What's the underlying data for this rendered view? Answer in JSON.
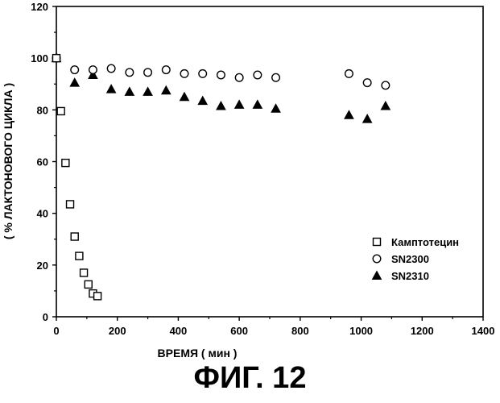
{
  "figure_caption": "ФИГ. 12",
  "chart_data": {
    "type": "scatter",
    "xlabel": "ВРЕМЯ ( мин )",
    "ylabel": "( % ЛАКТОНОВОГО ЦИКЛА )",
    "xlim": [
      0,
      1400
    ],
    "ylim": [
      0,
      120
    ],
    "xticks": [
      0,
      200,
      400,
      600,
      800,
      1000,
      1200,
      1400
    ],
    "yticks": [
      0,
      20,
      40,
      60,
      80,
      100,
      120
    ],
    "grid": false,
    "legend_position": "lower-right",
    "series": [
      {
        "name": "Камптотецин",
        "marker": "square-open",
        "x": [
          0,
          15,
          30,
          45,
          60,
          75,
          90,
          105,
          120,
          135
        ],
        "y": [
          100,
          79.5,
          59.5,
          43.5,
          31,
          23.5,
          17,
          12.5,
          9,
          8
        ]
      },
      {
        "name": "SN2300",
        "marker": "circle-open",
        "x": [
          0,
          60,
          120,
          180,
          240,
          300,
          360,
          420,
          480,
          540,
          600,
          660,
          720,
          960,
          1020,
          1080
        ],
        "y": [
          100,
          95.5,
          95.5,
          96,
          94.5,
          94.5,
          95.5,
          94,
          94,
          93.5,
          92.5,
          93.5,
          92.5,
          94,
          90.5,
          89.5
        ]
      },
      {
        "name": "SN2310",
        "marker": "triangle-filled",
        "x": [
          0,
          60,
          120,
          180,
          240,
          300,
          360,
          420,
          480,
          540,
          600,
          660,
          720,
          960,
          1020,
          1080
        ],
        "y": [
          100,
          90.5,
          93.5,
          88,
          87,
          87,
          87.5,
          85,
          83.5,
          81.5,
          82,
          82,
          80.5,
          78,
          76.5,
          81.5
        ]
      }
    ]
  }
}
